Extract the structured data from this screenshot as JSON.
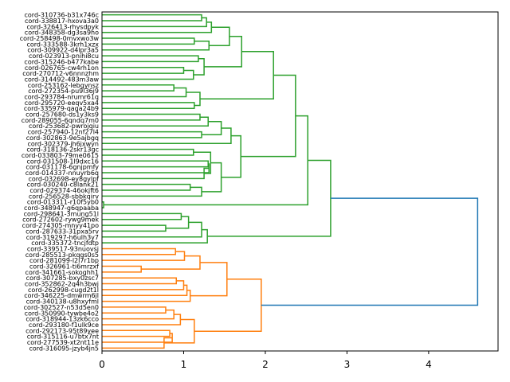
{
  "chart_data": {
    "type": "dendrogram",
    "title": "",
    "xlabel": "",
    "ylabel": "",
    "orientation": "right",
    "xlim": [
      0,
      4.85
    ],
    "xticks": [
      0,
      1,
      2,
      3,
      4
    ],
    "colors": {
      "cluster_a": "#2ca02c",
      "cluster_b": "#ff7f0e",
      "above_threshold": "#1f77b4"
    },
    "leaves": [
      "cord-310736-b31x746c",
      "cord-338817-hxova3a0",
      "cord-326413-rhvsdpyk",
      "cord-348358-dg3sa9ho",
      "cord-258498-0mvxwo3w",
      "cord-333588-3krh1xzx",
      "cord-309922-d4lpr3a5",
      "cord-023913-pnihi8cu",
      "cord-315246-b477kabe",
      "cord-026765-cw4rh1on",
      "cord-270712-v6nnnzhm",
      "cord-314492-483m3aw",
      "cord-253162-lebgynsz",
      "cord-272354-pu9l36j9",
      "cord-293784-nrumr61q",
      "cord-295720-eeqv5xa4",
      "cord-335979-qaga24b9",
      "cord-257680-ds1y3ks9",
      "cord-289055-6qndq7m0",
      "cord-253682-pwrojqiu",
      "cord-257940-12nf27l4",
      "cord-302863-9e5ajbgq",
      "cord-302379-jh6jxwyn",
      "cord-318136-2skr13gc",
      "cord-033803-79me0615",
      "cord-031508-1l9dxc16",
      "cord-031178-6gnjpmfy",
      "cord-014337-nnuyrb6q",
      "cord-032698-ey8gylpf",
      "cord-030240-c8lank21",
      "cord-029374-46okjft6",
      "cord-256528-sbbkqirv",
      "cord-013311-r10f5yb0",
      "cord-348947-g6qpaaba",
      "cord-298641-3mung51l",
      "cord-272602-rywg9mek",
      "cord-274305-mnyy41po",
      "cord-287633-31pxa5rv",
      "cord-319297-h6ulh3y7",
      "cord-335372-tncjfdtp",
      "cord-339517-93nuovsj",
      "cord-285513-pkqgs0s5",
      "cord-281099-l2l7r1bp",
      "cord-326961-ti6mrzxf",
      "cord-341661-sokoghh1",
      "cord-307285-bxy0zsc7",
      "cord-352862-2q4h3bwj",
      "cord-262998-cugd2t1l",
      "cord-346225-dmwrm6jl",
      "cord-340138-u8hxyfml",
      "cord-302527-n53d5en0",
      "cord-350990-tywbe4o2",
      "cord-318944-13zk6cco",
      "cord-293180-f1ulk9ce",
      "cord-292173-95t89yee",
      "cord-315116-u7btx7nt",
      "cord-277539-xt2nt11e",
      "cord-316095-jzyb4jn5"
    ],
    "merges": [
      {
        "a": "L0",
        "b": "L1",
        "h": 1.22,
        "c": "cluster_a"
      },
      {
        "a": "M0",
        "b": "L2",
        "h": 1.28,
        "c": "cluster_a"
      },
      {
        "a": "M1",
        "b": "L3",
        "h": 1.34,
        "c": "cluster_a"
      },
      {
        "a": "L4",
        "b": "L5",
        "h": 1.13,
        "c": "cluster_a"
      },
      {
        "a": "M3",
        "b": "L6",
        "h": 1.31,
        "c": "cluster_a"
      },
      {
        "a": "M2",
        "b": "M4",
        "h": 1.56,
        "c": "cluster_a"
      },
      {
        "a": "L7",
        "b": "L8",
        "h": 1.18,
        "c": "cluster_a"
      },
      {
        "a": "L9",
        "b": "L10",
        "h": 1.0,
        "c": "cluster_a"
      },
      {
        "a": "M7",
        "b": "L11",
        "h": 1.12,
        "c": "cluster_a"
      },
      {
        "a": "M6",
        "b": "M8",
        "h": 1.25,
        "c": "cluster_a"
      },
      {
        "a": "M5",
        "b": "M9",
        "h": 1.71,
        "c": "cluster_a"
      },
      {
        "a": "L12",
        "b": "L13",
        "h": 0.88,
        "c": "cluster_a"
      },
      {
        "a": "M11",
        "b": "L14",
        "h": 1.03,
        "c": "cluster_a"
      },
      {
        "a": "L15",
        "b": "L16",
        "h": 1.13,
        "c": "cluster_a"
      },
      {
        "a": "M12",
        "b": "M13",
        "h": 1.2,
        "c": "cluster_a"
      },
      {
        "a": "M10",
        "b": "M14",
        "h": 2.1,
        "c": "cluster_a"
      },
      {
        "a": "L17",
        "b": "L18",
        "h": 1.2,
        "c": "cluster_a"
      },
      {
        "a": "M16",
        "b": "L19",
        "h": 1.3,
        "c": "cluster_a"
      },
      {
        "a": "L20",
        "b": "L21",
        "h": 1.22,
        "c": "cluster_a"
      },
      {
        "a": "M17",
        "b": "M18",
        "h": 1.46,
        "c": "cluster_a"
      },
      {
        "a": "M19",
        "b": "L22",
        "h": 1.58,
        "c": "cluster_a"
      },
      {
        "a": "L23",
        "b": "L24",
        "h": 1.12,
        "c": "cluster_a"
      },
      {
        "a": "L25",
        "b": "L26",
        "h": 1.3,
        "c": "cluster_a"
      },
      {
        "a": "M22",
        "b": "L27",
        "h": 1.31,
        "c": "cluster_a"
      },
      {
        "a": "M23",
        "b": "L28",
        "h": 1.25,
        "c": "cluster_a"
      },
      {
        "a": "M21",
        "b": "M24",
        "h": 1.33,
        "c": "cluster_a"
      },
      {
        "a": "L29",
        "b": "L30",
        "h": 1.08,
        "c": "cluster_a"
      },
      {
        "a": "M26",
        "b": "L31",
        "h": 1.22,
        "c": "cluster_a"
      },
      {
        "a": "M25",
        "b": "M27",
        "h": 1.46,
        "c": "cluster_a"
      },
      {
        "a": "M20",
        "b": "M28",
        "h": 1.7,
        "c": "cluster_a"
      },
      {
        "a": "M15",
        "b": "M29",
        "h": 2.37,
        "c": "cluster_a"
      },
      {
        "a": "L32",
        "b": "L33",
        "h": 0.02,
        "c": "cluster_a"
      },
      {
        "a": "M30",
        "b": "M31",
        "h": 2.52,
        "c": "cluster_a"
      },
      {
        "a": "L34",
        "b": "L35",
        "h": 0.97,
        "c": "cluster_a"
      },
      {
        "a": "L36",
        "b": "L37",
        "h": 0.78,
        "c": "cluster_a"
      },
      {
        "a": "M33",
        "b": "M34",
        "h": 1.06,
        "c": "cluster_a"
      },
      {
        "a": "M35",
        "b": "L38",
        "h": 1.22,
        "c": "cluster_a"
      },
      {
        "a": "M36",
        "b": "L39",
        "h": 1.29,
        "c": "cluster_a"
      },
      {
        "a": "M32",
        "b": "M37",
        "h": 2.8,
        "c": "cluster_a"
      },
      {
        "a": "L40",
        "b": "L41",
        "h": 0.9,
        "c": "cluster_b"
      },
      {
        "a": "M39",
        "b": "L42",
        "h": 1.01,
        "c": "cluster_b"
      },
      {
        "a": "L43",
        "b": "L44",
        "h": 0.48,
        "c": "cluster_b"
      },
      {
        "a": "M40",
        "b": "M41",
        "h": 1.2,
        "c": "cluster_b"
      },
      {
        "a": "L45",
        "b": "L46",
        "h": 0.91,
        "c": "cluster_b"
      },
      {
        "a": "M43",
        "b": "L47",
        "h": 1.0,
        "c": "cluster_b"
      },
      {
        "a": "M44",
        "b": "L48",
        "h": 1.04,
        "c": "cluster_b"
      },
      {
        "a": "M45",
        "b": "L49",
        "h": 1.08,
        "c": "cluster_b"
      },
      {
        "a": "M42",
        "b": "M46",
        "h": 1.53,
        "c": "cluster_b"
      },
      {
        "a": "L50",
        "b": "L51",
        "h": 0.78,
        "c": "cluster_b"
      },
      {
        "a": "M48",
        "b": "L52",
        "h": 0.88,
        "c": "cluster_b"
      },
      {
        "a": "M49",
        "b": "L53",
        "h": 0.96,
        "c": "cluster_b"
      },
      {
        "a": "L54",
        "b": "L55",
        "h": 0.83,
        "c": "cluster_b"
      },
      {
        "a": "M51",
        "b": "L56",
        "h": 0.86,
        "c": "cluster_b"
      },
      {
        "a": "M52",
        "b": "L57",
        "h": 0.76,
        "c": "cluster_b"
      },
      {
        "a": "M50",
        "b": "M53",
        "h": 1.13,
        "c": "cluster_b"
      },
      {
        "a": "M47",
        "b": "M54",
        "h": 1.95,
        "c": "cluster_b"
      },
      {
        "a": "M38",
        "b": "M55",
        "h": 4.6,
        "c": "above_threshold"
      }
    ]
  }
}
